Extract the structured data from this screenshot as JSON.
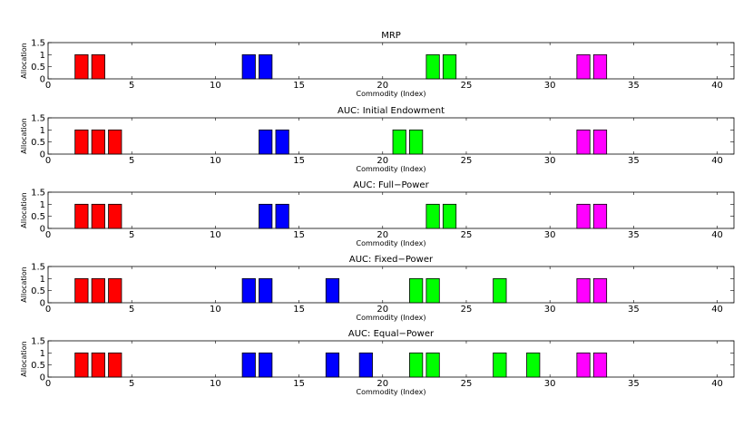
{
  "figure": {
    "colors": {
      "red": "#ff0000",
      "blue": "#0000ff",
      "green": "#00ff00",
      "magenta": "#ff00ff"
    }
  },
  "chart_data": [
    {
      "type": "bar",
      "title": "MRP",
      "xlabel": "Commodity (Index)",
      "ylabel": "Allocation",
      "xlim": [
        0,
        41
      ],
      "ylim": [
        0,
        1.5
      ],
      "xticks": [
        0,
        5,
        10,
        15,
        20,
        25,
        30,
        35,
        40
      ],
      "yticks": [
        0,
        0.5,
        1,
        1.5
      ],
      "bars": [
        {
          "x": 2,
          "value": 1,
          "color": "red"
        },
        {
          "x": 3,
          "value": 1,
          "color": "red"
        },
        {
          "x": 12,
          "value": 1,
          "color": "blue"
        },
        {
          "x": 13,
          "value": 1,
          "color": "blue"
        },
        {
          "x": 23,
          "value": 1,
          "color": "green"
        },
        {
          "x": 24,
          "value": 1,
          "color": "green"
        },
        {
          "x": 32,
          "value": 1,
          "color": "magenta"
        },
        {
          "x": 33,
          "value": 1,
          "color": "magenta"
        }
      ]
    },
    {
      "type": "bar",
      "title": "AUC: Initial Endowment",
      "xlabel": "Commodity (Index)",
      "ylabel": "Allocation",
      "xlim": [
        0,
        41
      ],
      "ylim": [
        0,
        1.5
      ],
      "xticks": [
        0,
        5,
        10,
        15,
        20,
        25,
        30,
        35,
        40
      ],
      "yticks": [
        0,
        0.5,
        1,
        1.5
      ],
      "bars": [
        {
          "x": 2,
          "value": 1,
          "color": "red"
        },
        {
          "x": 3,
          "value": 1,
          "color": "red"
        },
        {
          "x": 4,
          "value": 1,
          "color": "red"
        },
        {
          "x": 13,
          "value": 1,
          "color": "blue"
        },
        {
          "x": 14,
          "value": 1,
          "color": "blue"
        },
        {
          "x": 21,
          "value": 1,
          "color": "green"
        },
        {
          "x": 22,
          "value": 1,
          "color": "green"
        },
        {
          "x": 32,
          "value": 1,
          "color": "magenta"
        },
        {
          "x": 33,
          "value": 1,
          "color": "magenta"
        }
      ]
    },
    {
      "type": "bar",
      "title": "AUC: Full−Power",
      "xlabel": "Commodity (Index)",
      "ylabel": "Allocation",
      "xlim": [
        0,
        41
      ],
      "ylim": [
        0,
        1.5
      ],
      "xticks": [
        0,
        5,
        10,
        15,
        20,
        25,
        30,
        35,
        40
      ],
      "yticks": [
        0,
        0.5,
        1,
        1.5
      ],
      "bars": [
        {
          "x": 2,
          "value": 1,
          "color": "red"
        },
        {
          "x": 3,
          "value": 1,
          "color": "red"
        },
        {
          "x": 4,
          "value": 1,
          "color": "red"
        },
        {
          "x": 13,
          "value": 1,
          "color": "blue"
        },
        {
          "x": 14,
          "value": 1,
          "color": "blue"
        },
        {
          "x": 23,
          "value": 1,
          "color": "green"
        },
        {
          "x": 24,
          "value": 1,
          "color": "green"
        },
        {
          "x": 32,
          "value": 1,
          "color": "magenta"
        },
        {
          "x": 33,
          "value": 1,
          "color": "magenta"
        }
      ]
    },
    {
      "type": "bar",
      "title": "AUC: Fixed−Power",
      "xlabel": "Commodity (Index)",
      "ylabel": "Allocation",
      "xlim": [
        0,
        41
      ],
      "ylim": [
        0,
        1.5
      ],
      "xticks": [
        0,
        5,
        10,
        15,
        20,
        25,
        30,
        35,
        40
      ],
      "yticks": [
        0,
        0.5,
        1,
        1.5
      ],
      "bars": [
        {
          "x": 2,
          "value": 1,
          "color": "red"
        },
        {
          "x": 3,
          "value": 1,
          "color": "red"
        },
        {
          "x": 4,
          "value": 1,
          "color": "red"
        },
        {
          "x": 12,
          "value": 1,
          "color": "blue"
        },
        {
          "x": 13,
          "value": 1,
          "color": "blue"
        },
        {
          "x": 17,
          "value": 1,
          "color": "blue"
        },
        {
          "x": 22,
          "value": 1,
          "color": "green"
        },
        {
          "x": 23,
          "value": 1,
          "color": "green"
        },
        {
          "x": 27,
          "value": 1,
          "color": "green"
        },
        {
          "x": 32,
          "value": 1,
          "color": "magenta"
        },
        {
          "x": 33,
          "value": 1,
          "color": "magenta"
        }
      ]
    },
    {
      "type": "bar",
      "title": "AUC: Equal−Power",
      "xlabel": "Commodity (Index)",
      "ylabel": "Allocation",
      "xlim": [
        0,
        41
      ],
      "ylim": [
        0,
        1.5
      ],
      "xticks": [
        0,
        5,
        10,
        15,
        20,
        25,
        30,
        35,
        40
      ],
      "yticks": [
        0,
        0.5,
        1,
        1.5
      ],
      "bars": [
        {
          "x": 2,
          "value": 1,
          "color": "red"
        },
        {
          "x": 3,
          "value": 1,
          "color": "red"
        },
        {
          "x": 4,
          "value": 1,
          "color": "red"
        },
        {
          "x": 12,
          "value": 1,
          "color": "blue"
        },
        {
          "x": 13,
          "value": 1,
          "color": "blue"
        },
        {
          "x": 17,
          "value": 1,
          "color": "blue"
        },
        {
          "x": 19,
          "value": 1,
          "color": "blue"
        },
        {
          "x": 22,
          "value": 1,
          "color": "green"
        },
        {
          "x": 23,
          "value": 1,
          "color": "green"
        },
        {
          "x": 27,
          "value": 1,
          "color": "green"
        },
        {
          "x": 29,
          "value": 1,
          "color": "green"
        },
        {
          "x": 32,
          "value": 1,
          "color": "magenta"
        },
        {
          "x": 33,
          "value": 1,
          "color": "magenta"
        }
      ]
    }
  ]
}
